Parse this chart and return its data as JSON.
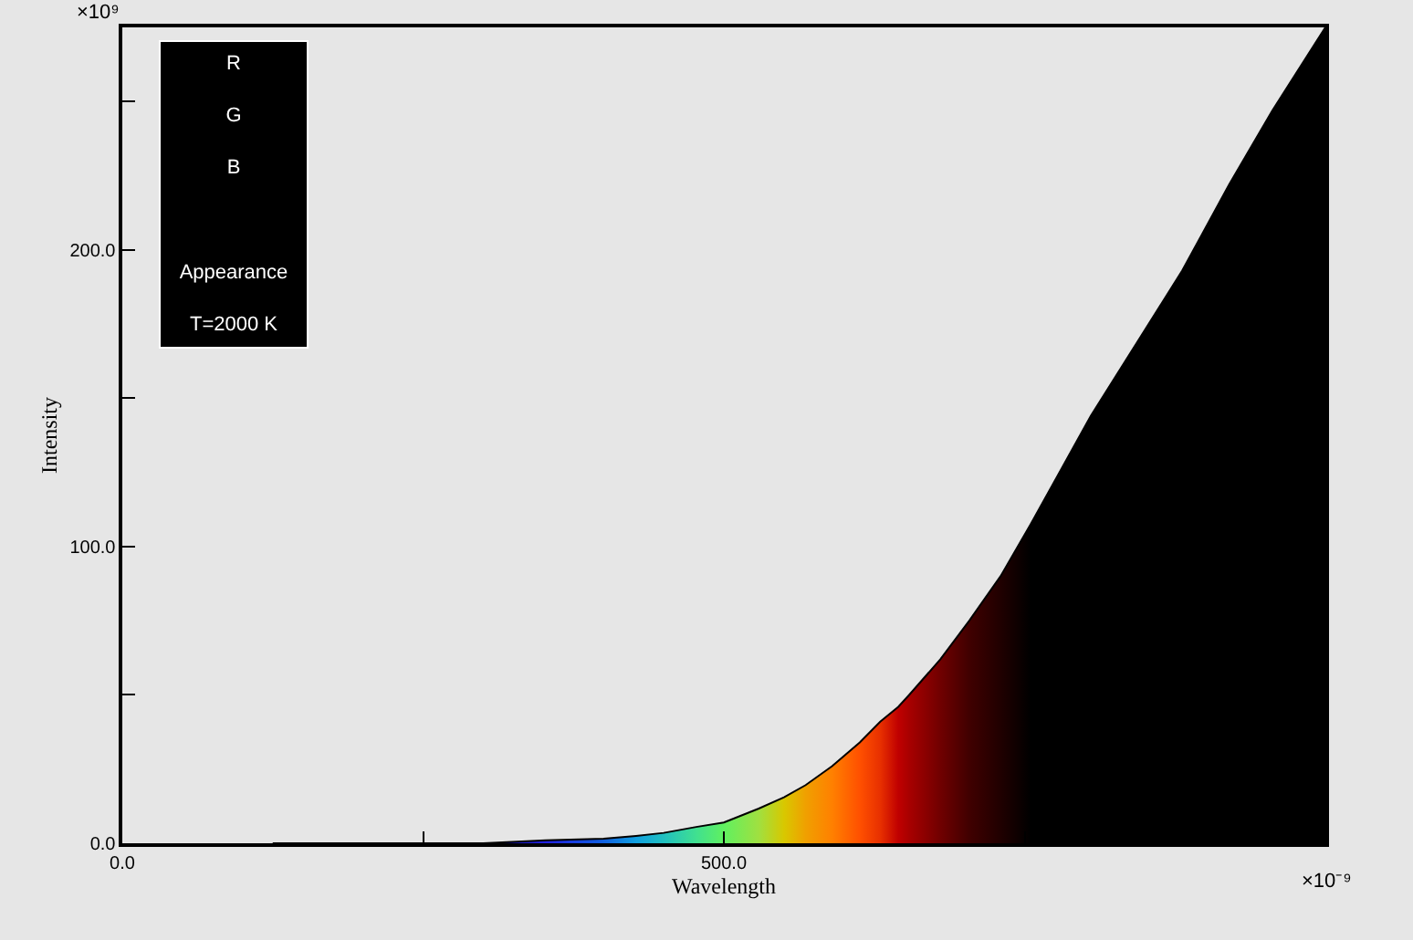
{
  "chart_data": {
    "type": "area",
    "xlabel": "Wavelength",
    "ylabel": "Intensity",
    "x": [
      125,
      200,
      300,
      352,
      400,
      427,
      450,
      477,
      500,
      529,
      550,
      568,
      590,
      613,
      630,
      645,
      654,
      680,
      704,
      730,
      755,
      805,
      850,
      881,
      920,
      956,
      1000
    ],
    "series": [
      {
        "values": [
          0,
          0,
          0,
          1,
          1.5,
          2.5,
          3.5,
          5.5,
          7,
          11.7,
          15.5,
          19.6,
          26,
          34,
          41,
          46,
          50,
          62,
          75,
          90,
          107.5,
          144,
          173,
          193,
          222,
          247,
          275
        ],
        "colors": [
          "#000000",
          "#000000",
          "#1010a0",
          "#2020e0",
          "#1060e0",
          "#10a0e0",
          "#20c0c0",
          "#40e090",
          "#60f060",
          "#a0e040",
          "#d8c800",
          "#f0a000",
          "#ff8000",
          "#ff5000",
          "#e83000",
          "#c00000",
          "#a80000",
          "#700000",
          "#400000",
          "#200000",
          "#000000",
          "#000000",
          "#000000",
          "#000000",
          "#000000",
          "#000000",
          "#000000"
        ]
      }
    ],
    "xlim": [
      0,
      1000
    ],
    "ylim": [
      0,
      275
    ],
    "xticks": [
      {
        "value": 0,
        "label": "0.0"
      },
      {
        "value": 250,
        "label": null
      },
      {
        "value": 500,
        "label": "500.0"
      },
      {
        "value": 750,
        "label": null
      }
    ],
    "yticks": [
      {
        "value": 0,
        "label": "0.0"
      },
      {
        "value": 50,
        "label": null
      },
      {
        "value": 100,
        "label": "100.0"
      },
      {
        "value": 150,
        "label": null
      },
      {
        "value": 200,
        "label": "200.0"
      },
      {
        "value": 250,
        "label": null
      }
    ],
    "grid": false,
    "annotations": [
      "×10⁹",
      "×10⁻⁹",
      "R",
      "G",
      "B",
      "Appearance",
      "T=2000 K"
    ]
  }
}
